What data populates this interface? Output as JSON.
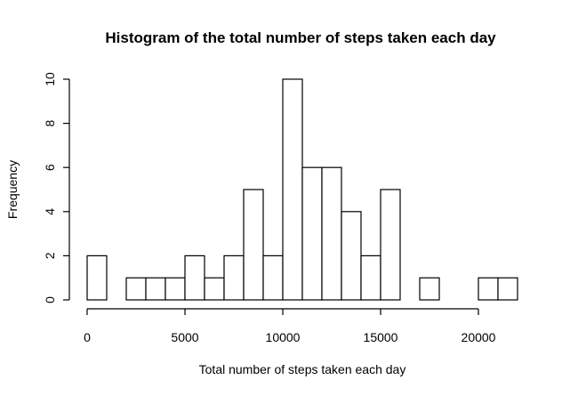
{
  "chart_data": {
    "type": "bar",
    "title": "Histogram of the total number of steps taken each day",
    "xlabel": "Total number of steps taken each day",
    "ylabel": "Frequency",
    "xlim": [
      0,
      22000
    ],
    "ylim": [
      0,
      10
    ],
    "bin_width": 1000,
    "bins": [
      {
        "x0": 0,
        "x1": 1000,
        "count": 2
      },
      {
        "x0": 1000,
        "x1": 2000,
        "count": 0
      },
      {
        "x0": 2000,
        "x1": 3000,
        "count": 1
      },
      {
        "x0": 3000,
        "x1": 4000,
        "count": 1
      },
      {
        "x0": 4000,
        "x1": 5000,
        "count": 1
      },
      {
        "x0": 5000,
        "x1": 6000,
        "count": 2
      },
      {
        "x0": 6000,
        "x1": 7000,
        "count": 1
      },
      {
        "x0": 7000,
        "x1": 8000,
        "count": 2
      },
      {
        "x0": 8000,
        "x1": 9000,
        "count": 5
      },
      {
        "x0": 9000,
        "x1": 10000,
        "count": 2
      },
      {
        "x0": 10000,
        "x1": 11000,
        "count": 10
      },
      {
        "x0": 11000,
        "x1": 12000,
        "count": 6
      },
      {
        "x0": 12000,
        "x1": 13000,
        "count": 6
      },
      {
        "x0": 13000,
        "x1": 14000,
        "count": 4
      },
      {
        "x0": 14000,
        "x1": 15000,
        "count": 2
      },
      {
        "x0": 15000,
        "x1": 16000,
        "count": 5
      },
      {
        "x0": 16000,
        "x1": 17000,
        "count": 0
      },
      {
        "x0": 17000,
        "x1": 18000,
        "count": 1
      },
      {
        "x0": 18000,
        "x1": 19000,
        "count": 0
      },
      {
        "x0": 19000,
        "x1": 20000,
        "count": 0
      },
      {
        "x0": 20000,
        "x1": 21000,
        "count": 1
      },
      {
        "x0": 21000,
        "x1": 22000,
        "count": 1
      }
    ],
    "x_ticks": [
      0,
      5000,
      10000,
      15000,
      20000
    ],
    "y_ticks": [
      0,
      2,
      4,
      6,
      8,
      10
    ],
    "grid": false,
    "legend": "none"
  }
}
